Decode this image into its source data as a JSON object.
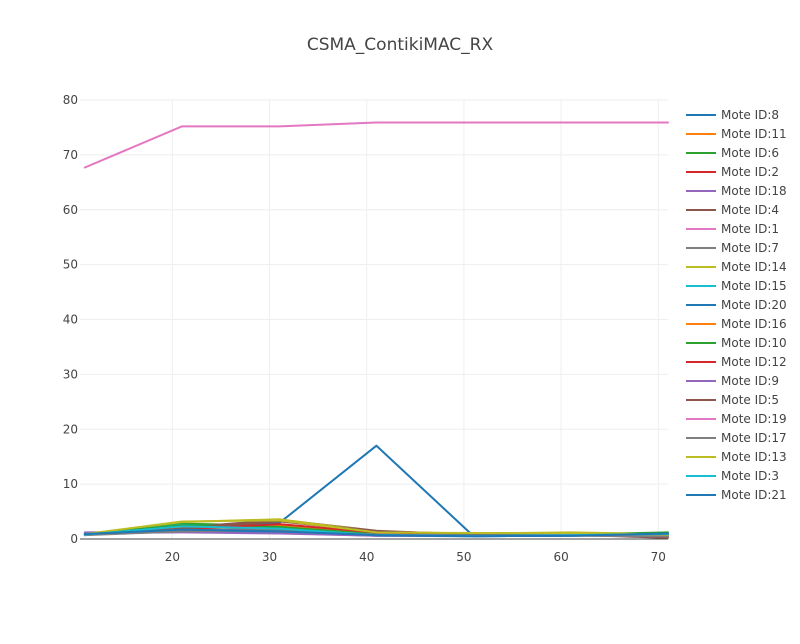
{
  "chart_data": {
    "type": "line",
    "title": "CSMA_ContikiMAC_RX",
    "xlabel": "",
    "ylabel": "",
    "xlim": [
      10.5,
      71
    ],
    "ylim": [
      0,
      80
    ],
    "x_ticks": [
      20,
      30,
      40,
      50,
      60,
      70
    ],
    "y_ticks": [
      0,
      10,
      20,
      30,
      40,
      50,
      60,
      70,
      80
    ],
    "grid": true,
    "legend_position": "right",
    "x": [
      11,
      21,
      31,
      41,
      51,
      61,
      71
    ],
    "series": [
      {
        "name": "Mote ID:8",
        "color": "#1f77b4",
        "values": [
          0.9,
          2.4,
          2.9,
          17.0,
          0.5,
          0.6,
          0.9
        ]
      },
      {
        "name": "Mote ID:11",
        "color": "#ff7f0e",
        "values": [
          0.8,
          1.9,
          2.6,
          1.2,
          0.8,
          0.8,
          0.6
        ]
      },
      {
        "name": "Mote ID:6",
        "color": "#2ca02c",
        "values": [
          0.9,
          2.8,
          2.4,
          1.0,
          0.7,
          0.8,
          1.2
        ]
      },
      {
        "name": "Mote ID:2",
        "color": "#d62728",
        "values": [
          0.7,
          2.0,
          3.3,
          1.4,
          0.9,
          0.9,
          0.8
        ]
      },
      {
        "name": "Mote ID:18",
        "color": "#9467bd",
        "values": [
          1.2,
          1.3,
          1.1,
          0.6,
          0.7,
          0.8,
          0.6
        ]
      },
      {
        "name": "Mote ID:4",
        "color": "#8c564b",
        "values": [
          0.9,
          2.1,
          3.5,
          1.5,
          0.8,
          0.9,
          0.7
        ]
      },
      {
        "name": "Mote ID:1",
        "color": "#e377c2",
        "values": [
          67.7,
          75.2,
          75.2,
          75.9,
          75.9,
          75.9,
          75.9
        ]
      },
      {
        "name": "Mote ID:7",
        "color": "#7f7f7f",
        "values": [
          0.8,
          1.7,
          1.8,
          0.9,
          0.6,
          0.7,
          0.5
        ]
      },
      {
        "name": "Mote ID:14",
        "color": "#bcbd22",
        "values": [
          0.9,
          3.1,
          3.6,
          1.3,
          1.0,
          1.2,
          0.9
        ]
      },
      {
        "name": "Mote ID:15",
        "color": "#17becf",
        "values": [
          0.8,
          2.6,
          2.0,
          0.8,
          0.6,
          0.7,
          0.7
        ]
      },
      {
        "name": "Mote ID:20",
        "color": "#1f77b4",
        "values": [
          0.9,
          1.5,
          1.3,
          0.6,
          0.5,
          0.6,
          0.9
        ]
      },
      {
        "name": "Mote ID:16",
        "color": "#ff7f0e",
        "values": [
          0.8,
          2.2,
          2.5,
          1.1,
          0.7,
          0.9,
          0.6
        ]
      },
      {
        "name": "Mote ID:10",
        "color": "#2ca02c",
        "values": [
          0.9,
          2.5,
          2.2,
          0.9,
          0.7,
          0.8,
          1.1
        ]
      },
      {
        "name": "Mote ID:12",
        "color": "#d62728",
        "values": [
          0.8,
          1.8,
          2.7,
          1.2,
          0.8,
          0.8,
          0.7
        ]
      },
      {
        "name": "Mote ID:9",
        "color": "#9467bd",
        "values": [
          1.1,
          1.2,
          1.0,
          0.6,
          0.6,
          0.7,
          0.8
        ]
      },
      {
        "name": "Mote ID:5",
        "color": "#8c564b",
        "values": [
          0.8,
          1.9,
          3.2,
          1.4,
          0.7,
          0.8,
          0.2
        ]
      },
      {
        "name": "Mote ID:19",
        "color": "#e377c2",
        "values": [
          0.9,
          1.6,
          1.5,
          0.8,
          0.6,
          0.7,
          0.7
        ]
      },
      {
        "name": "Mote ID:17",
        "color": "#7f7f7f",
        "values": [
          0.7,
          1.4,
          1.6,
          0.8,
          0.6,
          0.6,
          0.5
        ]
      },
      {
        "name": "Mote ID:13",
        "color": "#bcbd22",
        "values": [
          0.9,
          3.2,
          3.4,
          1.2,
          1.1,
          1.1,
          0.8
        ]
      },
      {
        "name": "Mote ID:3",
        "color": "#17becf",
        "values": [
          0.8,
          2.3,
          1.9,
          0.7,
          0.6,
          0.7,
          0.9
        ]
      },
      {
        "name": "Mote ID:21",
        "color": "#1f77b4",
        "values": [
          0.9,
          1.7,
          1.4,
          0.7,
          0.5,
          0.6,
          1.0
        ]
      }
    ]
  }
}
